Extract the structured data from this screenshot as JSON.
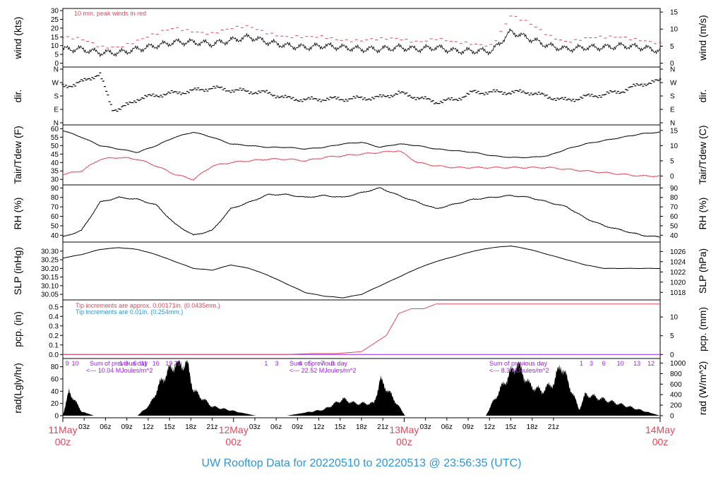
{
  "title": "UW Rooftop Data for 20220510  to  20220513 @ 23:56:35  (UTC)",
  "colors": {
    "primary": "#000000",
    "secondary": "#e2485c",
    "blue": "#2f95d6",
    "purple": "#a020f0"
  },
  "chart_data": [
    {
      "type": "line",
      "ylabel_left": "wind (kts)",
      "ylabel_right": "wind (m/s)",
      "ylim": [
        -1,
        30
      ],
      "yticks_left": [
        0,
        5,
        10,
        15,
        20,
        25,
        30
      ],
      "yticks_right": [
        0,
        5,
        10,
        15
      ],
      "annotation": "10 min. peak winds in red",
      "series": [
        {
          "x": [
            0,
            3,
            6,
            9,
            12,
            15,
            18,
            21,
            24,
            27,
            30,
            33,
            36,
            39,
            42,
            45,
            48,
            51,
            54,
            57,
            60,
            63,
            66,
            69,
            72,
            75,
            78,
            81,
            84,
            87,
            90,
            93,
            96
          ],
          "values": [
            8,
            8,
            6,
            6,
            8,
            10,
            12,
            12,
            11,
            13,
            15,
            12,
            10,
            9,
            10,
            9,
            8,
            8,
            9,
            8,
            9,
            7,
            7,
            7,
            18,
            14,
            10,
            8,
            9,
            9,
            10,
            9,
            7
          ]
        },
        {
          "x": [
            0,
            3,
            6,
            9,
            12,
            15,
            18,
            21,
            24,
            27,
            30,
            33,
            36,
            39,
            42,
            45,
            48,
            51,
            54,
            57,
            60,
            63,
            66,
            69,
            72,
            75,
            78,
            81,
            84,
            87,
            90,
            93,
            96
          ],
          "values": [
            15,
            13,
            9,
            10,
            13,
            16,
            20,
            19,
            17,
            19,
            21,
            18,
            15,
            14,
            15,
            14,
            13,
            13,
            14,
            13,
            14,
            11,
            11,
            11,
            27,
            22,
            16,
            13,
            14,
            14,
            15,
            14,
            11
          ]
        }
      ]
    },
    {
      "type": "scatter",
      "ylabel_left": "dir.",
      "ylabel_right": "dir.",
      "yticks_left": [
        "N",
        "E",
        "S",
        "W",
        "N"
      ],
      "yticks_right": [
        "N",
        "E",
        "S",
        "W",
        "N"
      ],
      "x": [
        0,
        2,
        4,
        6,
        8,
        9,
        10,
        12,
        15,
        18,
        21,
        24,
        27,
        30,
        33,
        36,
        39,
        42,
        45,
        48,
        51,
        54,
        57,
        60,
        63,
        66,
        69,
        72,
        75,
        78,
        81,
        84,
        87,
        90,
        93,
        96
      ],
      "values": [
        255,
        250,
        300,
        320,
        95,
        90,
        110,
        160,
        185,
        200,
        215,
        235,
        220,
        210,
        200,
        165,
        155,
        160,
        160,
        165,
        170,
        200,
        170,
        140,
        155,
        205,
        205,
        205,
        205,
        175,
        150,
        175,
        190,
        215,
        260,
        280
      ]
    },
    {
      "type": "line",
      "ylabel_left": "Tair/Tdew (F)",
      "ylabel_right": "Tair/Tdew (C)",
      "ylim": [
        28,
        61
      ],
      "yticks_left": [
        30,
        35,
        40,
        45,
        50,
        55,
        60
      ],
      "yticks_right": [
        0,
        5,
        10,
        15
      ],
      "series": [
        {
          "x": [
            0,
            3,
            6,
            9,
            12,
            15,
            18,
            21,
            24,
            27,
            30,
            33,
            36,
            39,
            42,
            45,
            48,
            51,
            54,
            57,
            60,
            63,
            66,
            69,
            72,
            75,
            78,
            81,
            84,
            87,
            90,
            93,
            96
          ],
          "values": [
            59,
            55,
            50,
            48,
            46,
            50,
            55,
            58,
            55,
            51,
            50,
            49,
            49,
            48,
            49,
            51,
            52,
            49,
            51,
            50,
            48,
            47,
            46,
            44,
            43,
            43,
            44,
            48,
            51,
            53,
            55,
            57,
            58
          ]
        },
        {
          "x": [
            0,
            3,
            6,
            9,
            12,
            15,
            18,
            21,
            24,
            27,
            30,
            33,
            36,
            39,
            42,
            45,
            48,
            51,
            54,
            57,
            60,
            63,
            66,
            69,
            72,
            75,
            78,
            81,
            84,
            87,
            90,
            93,
            96
          ],
          "values": [
            33,
            35,
            42,
            43,
            42,
            38,
            33,
            30,
            38,
            40,
            41,
            42,
            42,
            41,
            43,
            44,
            45,
            46,
            47,
            40,
            38,
            37,
            37,
            37,
            37,
            37,
            37,
            36,
            35,
            34,
            33,
            32,
            32
          ]
        }
      ]
    },
    {
      "type": "line",
      "ylabel_left": "RH (%)",
      "ylabel_right": "RH (%)",
      "ylim": [
        35,
        91
      ],
      "yticks_left": [
        40,
        50,
        60,
        70,
        80,
        90
      ],
      "yticks_right": [
        40,
        50,
        60,
        70,
        80,
        90
      ],
      "x": [
        0,
        3,
        6,
        9,
        12,
        15,
        18,
        21,
        24,
        27,
        30,
        33,
        36,
        39,
        42,
        45,
        48,
        51,
        54,
        57,
        60,
        63,
        66,
        69,
        72,
        75,
        78,
        81,
        84,
        87,
        90,
        93,
        96
      ],
      "values": [
        38,
        45,
        75,
        80,
        78,
        72,
        52,
        40,
        45,
        68,
        75,
        83,
        83,
        80,
        82,
        80,
        85,
        90,
        82,
        75,
        68,
        73,
        78,
        80,
        82,
        80,
        75,
        70,
        58,
        50,
        45,
        40,
        38
      ]
    },
    {
      "type": "line",
      "ylabel_left": "SLP (inHg)",
      "ylabel_right": "SLP (hPa)",
      "ylim": [
        30.03,
        30.34
      ],
      "yticks_left": [
        "30.05",
        "30.10",
        "30.15",
        "30.20",
        "30.25",
        "30.30"
      ],
      "yticks_right": [
        "1018",
        "1020",
        "1022",
        "1024",
        "1026"
      ],
      "x": [
        0,
        3,
        6,
        9,
        12,
        15,
        18,
        21,
        24,
        27,
        30,
        33,
        36,
        39,
        42,
        45,
        48,
        51,
        54,
        57,
        60,
        63,
        66,
        69,
        72,
        75,
        78,
        81,
        84,
        87,
        90,
        93,
        96
      ],
      "values": [
        30.26,
        30.28,
        30.31,
        30.32,
        30.31,
        30.28,
        30.24,
        30.2,
        30.19,
        30.22,
        30.2,
        30.16,
        30.11,
        30.06,
        30.04,
        30.03,
        30.05,
        30.1,
        30.15,
        30.2,
        30.24,
        30.27,
        30.3,
        30.32,
        30.33,
        30.31,
        30.28,
        30.25,
        30.22,
        30.2,
        30.2,
        30.2,
        30.2
      ]
    },
    {
      "type": "line",
      "ylabel_left": "pcp. (in)",
      "ylabel_right": "pcp. (mm)",
      "ylim": [
        -0.02,
        0.55
      ],
      "yticks_left": [
        "0.0",
        "0.1",
        "0.2",
        "0.3",
        "0.4",
        "0.5"
      ],
      "yticks_right": [
        "0",
        "5",
        "10"
      ],
      "annotations": [
        "Tip increments are approx. 0.00171in. (0.0435mm.)",
        "Tip increments are 0.01in. (0.254mm.)"
      ],
      "series": [
        {
          "x": [
            0,
            36,
            40,
            44,
            48,
            52,
            54,
            56,
            58,
            60,
            96
          ],
          "values": [
            0,
            0,
            0.01,
            0.01,
            0.03,
            0.2,
            0.43,
            0.48,
            0.48,
            0.53,
            0.53
          ]
        },
        {
          "x": [
            0,
            96
          ],
          "values": [
            0,
            0
          ]
        }
      ]
    },
    {
      "type": "area",
      "ylabel_left": "rad(Lgly/hr)",
      "ylabel_right": "rad (W/m^2)",
      "ylim": [
        0,
        90
      ],
      "yticks_left": [
        0,
        20,
        40,
        60,
        80
      ],
      "yticks_right": [
        0,
        200,
        400,
        600,
        800,
        1000
      ],
      "annotations": [
        "Sum of previous day",
        "<--- 10.04 MJoules/m^2",
        "Sum of previous day",
        "<--- 22.52 MJoules/m^2",
        "Sum of previous day",
        "<--- 8.3 MJoules/m^2"
      ],
      "hour_marks": [
        "9",
        "10",
        "1",
        "3",
        "6",
        "11",
        "16",
        "19",
        "21",
        "1",
        "3",
        "4",
        "5",
        "7",
        "8",
        "1",
        "3",
        "6",
        "10",
        "13",
        "12"
      ],
      "x": [
        0,
        1,
        3,
        5,
        7,
        12,
        14,
        16,
        18,
        20,
        21,
        22,
        24,
        31,
        36,
        42,
        45,
        47,
        50,
        51,
        52,
        55,
        57,
        59,
        61,
        66,
        68,
        69,
        71,
        73,
        75,
        77,
        79,
        80,
        83,
        84,
        96
      ],
      "values": [
        0,
        40,
        7,
        0,
        0,
        0,
        18,
        60,
        85,
        85,
        42,
        32,
        15,
        0,
        0,
        10,
        27,
        20,
        20,
        58,
        45,
        0,
        0,
        0,
        0,
        0,
        0,
        20,
        55,
        85,
        50,
        40,
        55,
        85,
        10,
        35,
        0
      ]
    }
  ],
  "x_axis": {
    "hour_ticks": [
      "03z",
      "06z",
      "09z",
      "12z",
      "15z",
      "18z",
      "21z",
      "03z",
      "06z",
      "09z",
      "12z",
      "15z",
      "18z",
      "21z",
      "03z",
      "06z",
      "09z",
      "12z",
      "15z",
      "18z",
      "21z"
    ],
    "day_labels": [
      {
        "day": "11May",
        "hour": "00z",
        "x": 0
      },
      {
        "day": "12May",
        "hour": "00z",
        "x": 24
      },
      {
        "day": "13May",
        "hour": "00z",
        "x": 48
      },
      {
        "day": "14May",
        "hour": "00z",
        "x": 72
      }
    ]
  }
}
